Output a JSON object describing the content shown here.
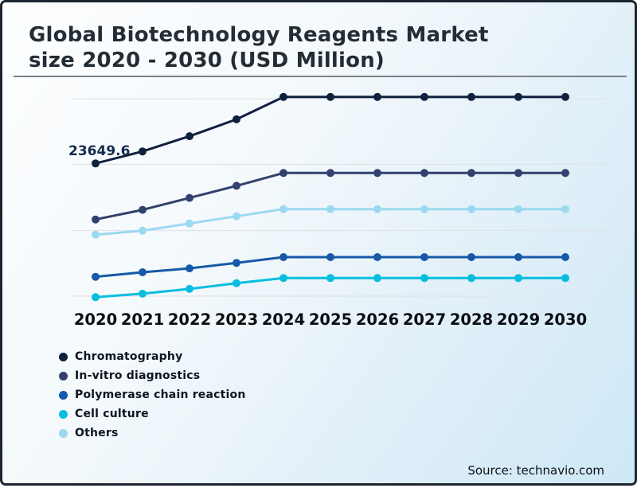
{
  "header": {
    "title_line1": "Global Biotechnology Reagents Market",
    "title_line2": "size 2020 - 2030 (USD Million)"
  },
  "footer": {
    "source": "Source: technavio.com"
  },
  "chart_data": {
    "type": "line",
    "title": "Global Biotechnology Reagents Market size 2020 - 2030 (USD Million)",
    "xlabel": "",
    "ylabel": "USD Million",
    "categories": [
      "2020",
      "2021",
      "2022",
      "2023",
      "2024",
      "2025",
      "2026",
      "2027",
      "2028",
      "2029",
      "2030"
    ],
    "ylim": [
      1200,
      35600
    ],
    "grid": "horizontal",
    "legend_position": "bottom-left",
    "annotations": [
      {
        "text": "23649.6",
        "series": "Chromatography",
        "category": "2020",
        "value": 23649.6
      }
    ],
    "series": [
      {
        "name": "Chromatography",
        "color": "#10203f",
        "values": [
          23649.6,
          25500,
          27850,
          30450,
          33900,
          33900,
          33900,
          33900,
          33900,
          33900,
          33900
        ]
      },
      {
        "name": "In-vitro diagnostics",
        "color": "#32416e",
        "values": [
          15000,
          16480,
          18330,
          20190,
          22170,
          22170,
          22170,
          22170,
          22170,
          22170,
          22170
        ]
      },
      {
        "name": "Polymerase chain reaction",
        "color": "#1659a8",
        "values": [
          6150,
          6850,
          7450,
          8300,
          9180,
          9180,
          9180,
          9180,
          9180,
          9180,
          9180
        ]
      },
      {
        "name": "Cell culture",
        "color": "#08bede",
        "values": [
          3000,
          3550,
          4280,
          5150,
          5950,
          5950,
          5950,
          5950,
          5950,
          5950,
          5950
        ]
      },
      {
        "name": "Others",
        "color": "#9bd9f0",
        "values": [
          12650,
          13260,
          14380,
          15490,
          16600,
          16600,
          16600,
          16600,
          16600,
          16600,
          16600
        ]
      }
    ]
  }
}
